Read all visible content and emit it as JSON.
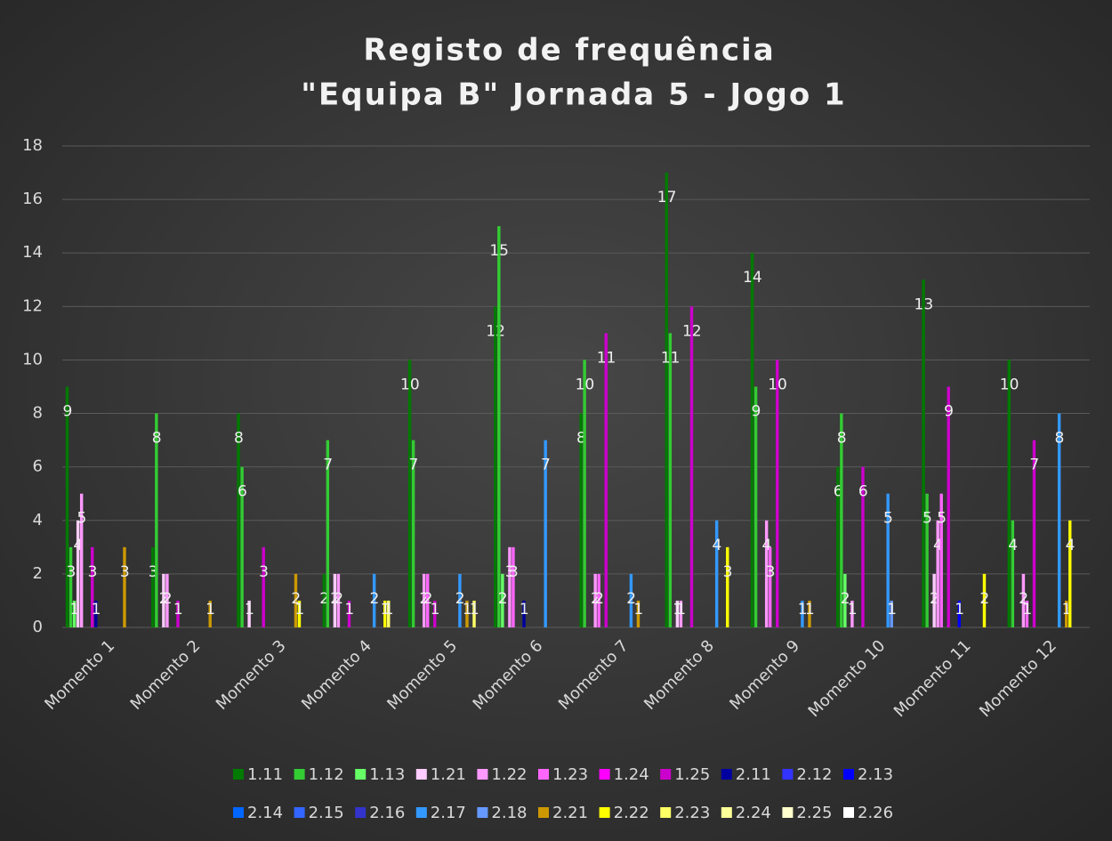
{
  "chart_data": {
    "type": "bar",
    "title": [
      "Registo de frequência",
      "\"Equipa B\" Jornada 5 - Jogo 1"
    ],
    "categories": [
      "Momento 1",
      "Momento 2",
      "Momento 3",
      "Momento 4",
      "Momento 5",
      "Momento 6",
      "Momento 7",
      "Momento 8",
      "Momento 9",
      "Momento 10",
      "Momento 11",
      "Momento 12"
    ],
    "ylim": [
      0,
      18
    ],
    "yticks": [
      0,
      2,
      4,
      6,
      8,
      10,
      12,
      14,
      16,
      18
    ],
    "grid": true,
    "legend": "bottom",
    "series": [
      {
        "name": "1.11",
        "color": "#007a00",
        "values": [
          9,
          3,
          8,
          2,
          10,
          12,
          8,
          17,
          14,
          6,
          13,
          10
        ]
      },
      {
        "name": "1.12",
        "color": "#33cc33",
        "values": [
          3,
          8,
          6,
          7,
          7,
          15,
          10,
          11,
          9,
          8,
          5,
          4
        ]
      },
      {
        "name": "1.13",
        "color": "#66ff66",
        "values": [
          1,
          0,
          0,
          0,
          0,
          2,
          0,
          0,
          0,
          2,
          0,
          0
        ]
      },
      {
        "name": "1.21",
        "color": "#ffccff",
        "values": [
          4,
          2,
          1,
          2,
          0,
          0,
          0,
          1,
          0,
          0,
          2,
          0
        ]
      },
      {
        "name": "1.22",
        "color": "#ff99ff",
        "values": [
          5,
          2,
          0,
          2,
          2,
          3,
          2,
          1,
          4,
          1,
          4,
          2
        ]
      },
      {
        "name": "1.23",
        "color": "#ff66ff",
        "values": [
          0,
          0,
          0,
          0,
          2,
          3,
          2,
          0,
          3,
          0,
          5,
          1
        ]
      },
      {
        "name": "1.24",
        "color": "#ff00ff",
        "values": [
          0,
          0,
          0,
          0,
          0,
          0,
          0,
          0,
          0,
          0,
          0,
          0
        ]
      },
      {
        "name": "1.25",
        "color": "#cc00cc",
        "values": [
          3,
          1,
          3,
          1,
          1,
          0,
          11,
          12,
          10,
          6,
          9,
          7
        ]
      },
      {
        "name": "2.11",
        "color": "#0000a0",
        "values": [
          1,
          0,
          0,
          0,
          0,
          1,
          0,
          0,
          0,
          0,
          0,
          0
        ]
      },
      {
        "name": "2.12",
        "color": "#3333ff",
        "values": [
          0,
          0,
          0,
          0,
          0,
          0,
          0,
          0,
          0,
          0,
          0,
          0
        ]
      },
      {
        "name": "2.13",
        "color": "#0000ff",
        "values": [
          0,
          0,
          0,
          0,
          0,
          0,
          0,
          0,
          0,
          0,
          1,
          0
        ]
      },
      {
        "name": "2.14",
        "color": "#0066ff",
        "values": [
          0,
          0,
          0,
          0,
          0,
          0,
          0,
          0,
          0,
          0,
          0,
          0
        ]
      },
      {
        "name": "2.15",
        "color": "#3366ff",
        "values": [
          0,
          0,
          0,
          0,
          0,
          0,
          0,
          0,
          0,
          0,
          0,
          0
        ]
      },
      {
        "name": "2.16",
        "color": "#3333cc",
        "values": [
          0,
          0,
          0,
          0,
          0,
          0,
          0,
          0,
          0,
          0,
          0,
          0
        ]
      },
      {
        "name": "2.17",
        "color": "#3399ff",
        "values": [
          0,
          0,
          0,
          2,
          2,
          7,
          2,
          4,
          1,
          5,
          0,
          8
        ]
      },
      {
        "name": "2.18",
        "color": "#6699ff",
        "values": [
          0,
          0,
          0,
          0,
          0,
          0,
          0,
          0,
          0,
          1,
          0,
          0
        ]
      },
      {
        "name": "2.21",
        "color": "#cc9900",
        "values": [
          3,
          1,
          2,
          0,
          1,
          0,
          1,
          0,
          1,
          0,
          0,
          1
        ]
      },
      {
        "name": "2.22",
        "color": "#ffff00",
        "values": [
          0,
          0,
          1,
          1,
          0,
          0,
          0,
          3,
          0,
          0,
          2,
          4
        ]
      },
      {
        "name": "2.23",
        "color": "#ffff66",
        "values": [
          0,
          0,
          0,
          1,
          1,
          0,
          0,
          0,
          0,
          0,
          0,
          0
        ]
      },
      {
        "name": "2.24",
        "color": "#ffff99",
        "values": [
          0,
          0,
          0,
          0,
          0,
          0,
          0,
          0,
          0,
          0,
          0,
          0
        ]
      },
      {
        "name": "2.25",
        "color": "#ffffcc",
        "values": [
          0,
          0,
          0,
          0,
          0,
          0,
          0,
          0,
          0,
          0,
          0,
          0
        ]
      },
      {
        "name": "2.26",
        "color": "#ffffff",
        "values": [
          0,
          0,
          0,
          0,
          0,
          0,
          0,
          0,
          0,
          0,
          0,
          0
        ]
      }
    ]
  }
}
